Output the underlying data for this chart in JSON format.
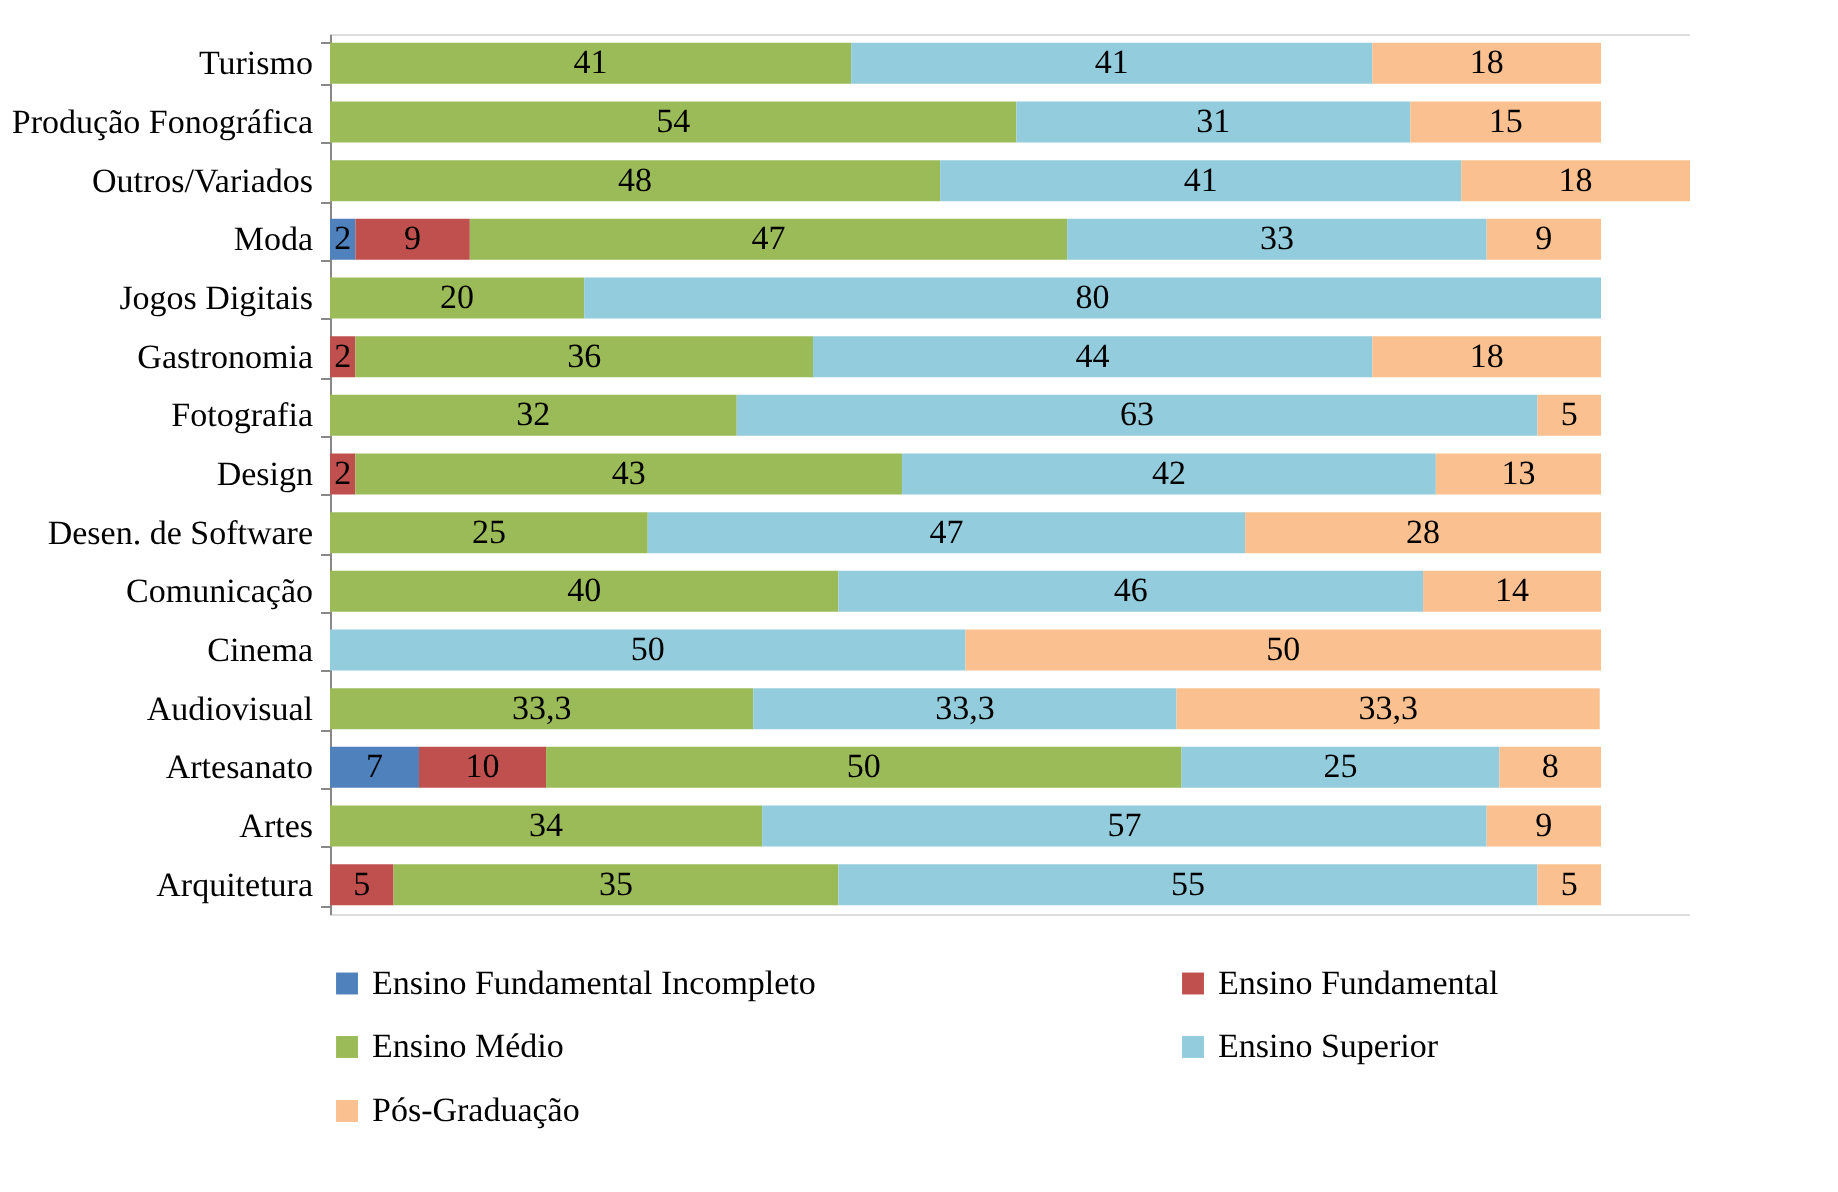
{
  "chart_data": {
    "type": "bar",
    "orientation": "horizontal",
    "stacked": true,
    "legend": "bottom",
    "grid": false,
    "tick_labels": "y",
    "categories": [
      "Turismo",
      "Produção Fonográfica",
      "Outros/Variados",
      "Moda",
      "Jogos Digitais",
      "Gastronomia",
      "Fotografia",
      "Design",
      "Desen. de Software",
      "Comunicação",
      "Cinema",
      "Audiovisual",
      "Artesanato",
      "Artes",
      "Arquitetura"
    ],
    "series": [
      {
        "name": "Ensino Fundamental Incompleto",
        "color": "#4f81bd",
        "values": [
          null,
          null,
          null,
          2,
          null,
          null,
          null,
          null,
          null,
          null,
          null,
          null,
          7,
          null,
          null
        ],
        "value_labels": [
          null,
          null,
          null,
          "2",
          null,
          null,
          null,
          null,
          null,
          null,
          null,
          null,
          "7",
          null,
          null
        ]
      },
      {
        "name": "Ensino Fundamental",
        "color": "#c0504d",
        "values": [
          null,
          null,
          null,
          9,
          null,
          2,
          null,
          2,
          null,
          null,
          null,
          null,
          10,
          null,
          5
        ],
        "value_labels": [
          null,
          null,
          null,
          "9",
          null,
          "2",
          null,
          "2",
          null,
          null,
          null,
          null,
          "10",
          null,
          "5"
        ]
      },
      {
        "name": "Ensino Médio",
        "color": "#9bbb59",
        "values": [
          41,
          54,
          48,
          47,
          20,
          36,
          32,
          43,
          25,
          40,
          null,
          33.3,
          50,
          34,
          35
        ],
        "value_labels": [
          "41",
          "54",
          "48",
          "47",
          "20",
          "36",
          "32",
          "43",
          "25",
          "40",
          null,
          "33,3",
          "50",
          "34",
          "35"
        ]
      },
      {
        "name": "Ensino Superior",
        "color": "#93cddd",
        "values": [
          41,
          31,
          41,
          33,
          80,
          44,
          63,
          42,
          47,
          46,
          50,
          33.3,
          25,
          57,
          55
        ],
        "value_labels": [
          "41",
          "31",
          "41",
          "33",
          "80",
          "44",
          "63",
          "42",
          "47",
          "46",
          "50",
          "33,3",
          "25",
          "57",
          "55"
        ]
      },
      {
        "name": "Pós-Graduação",
        "color": "#fac090",
        "values": [
          18,
          15,
          18,
          9,
          null,
          18,
          5,
          13,
          28,
          14,
          50,
          33.3,
          8,
          9,
          5
        ],
        "value_labels": [
          "18",
          "15",
          "18",
          "9",
          null,
          "18",
          "5",
          "13",
          "28",
          "14",
          "50",
          "33,3",
          "8",
          "9",
          "5"
        ]
      }
    ]
  }
}
